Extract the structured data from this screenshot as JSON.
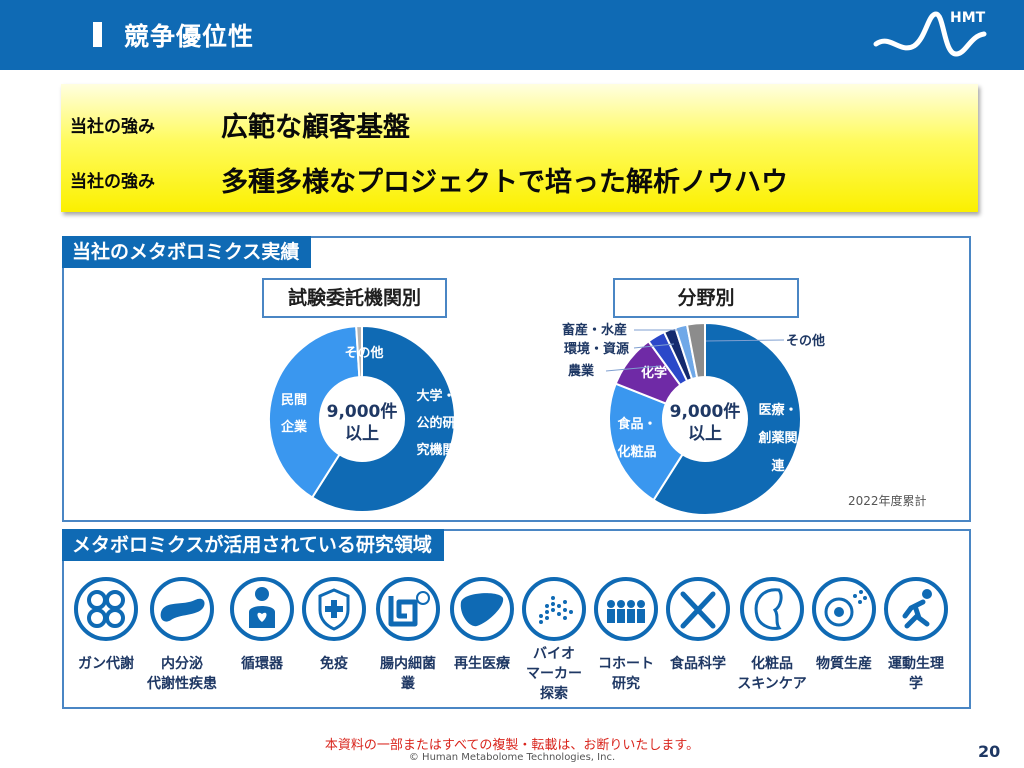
{
  "header": {
    "title": "競争優位性",
    "logo_text": "HMT",
    "brand_color": "#0f6ab4"
  },
  "strengths": [
    {
      "tag": "当社の強み",
      "text": "広範な顧客基盤"
    },
    {
      "tag": "当社の強み",
      "text": "多種多様なプロジェクトで培った解析ノウハウ"
    }
  ],
  "results": {
    "heading": "当社のメタボロミクス実績",
    "note": "2022年度累計"
  },
  "chart_data": [
    {
      "type": "pie",
      "title": "試験委託機関別",
      "center_label": [
        "9,000件",
        "以上"
      ],
      "slices": [
        {
          "name": "大学・公的研究機関",
          "value": 59,
          "color": "#0f6ab4",
          "label_lines": [
            "大学・",
            "公的研",
            "究機関"
          ]
        },
        {
          "name": "民間企業",
          "value": 40,
          "color": "#3a97ef",
          "label_lines": [
            "民間",
            "企業"
          ]
        },
        {
          "name": "その他",
          "value": 1,
          "color": "#b4b4b4",
          "label_lines": [
            "その他"
          ]
        }
      ]
    },
    {
      "type": "pie",
      "title": "分野別",
      "center_label": [
        "9,000件",
        "以上"
      ],
      "slices": [
        {
          "name": "医療・創薬関連",
          "value": 59,
          "color": "#0f6ab4",
          "label_lines": [
            "医療・",
            "創薬関",
            "連"
          ]
        },
        {
          "name": "食品・化粧品",
          "value": 22,
          "color": "#3a97ef",
          "label_lines": [
            "食品・",
            "化粧品"
          ]
        },
        {
          "name": "化学",
          "value": 9,
          "color": "#6f2aa6",
          "label_lines": [
            "化学"
          ]
        },
        {
          "name": "農業",
          "value": 3,
          "color": "#2b48c9",
          "label_lines": [
            "農業"
          ]
        },
        {
          "name": "環境・資源",
          "value": 2,
          "color": "#142a6e",
          "label_lines": [
            "環境・資源"
          ]
        },
        {
          "name": "畜産・水産",
          "value": 2,
          "color": "#6fa8e8",
          "label_lines": [
            "畜産・水産"
          ]
        },
        {
          "name": "その他",
          "value": 3,
          "color": "#8c8c8c",
          "label_lines": [
            "その他"
          ]
        }
      ]
    }
  ],
  "fields": {
    "heading": "メタボロミクスが活用されている研究領域",
    "items": [
      {
        "icon": "cancer-cells-icon",
        "label": "ガン代謝"
      },
      {
        "icon": "pancreas-icon",
        "label": "内分泌\n代謝性疾患"
      },
      {
        "icon": "person-heart-icon",
        "label": "循環器"
      },
      {
        "icon": "immune-shield-icon",
        "label": "免疫"
      },
      {
        "icon": "intestine-bacteria-icon",
        "label": "腸内細菌\n叢"
      },
      {
        "icon": "liver-icon",
        "label": "再生医療"
      },
      {
        "icon": "biomarker-dots-icon",
        "label": "バイオ\nマーカー\n探索"
      },
      {
        "icon": "cohort-people-icon",
        "label": "コホート\n研究"
      },
      {
        "icon": "fork-knife-icon",
        "label": "食品科学"
      },
      {
        "icon": "face-profile-icon",
        "label": "化粧品\nスキンケア"
      },
      {
        "icon": "cell-production-icon",
        "label": "物質生産"
      },
      {
        "icon": "runner-icon",
        "label": "運動生理\n学"
      }
    ]
  },
  "footer": {
    "note": "本資料の一部またはすべての複製・転載は、お断りいたします。",
    "copyright": "© Human Metabolome Technologies, Inc.",
    "page_number": "20"
  }
}
